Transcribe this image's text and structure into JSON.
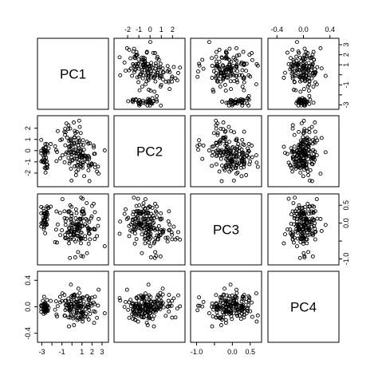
{
  "chart_data": {
    "type": "scatter",
    "layout": "scatterplot-matrix",
    "variables": [
      "PC1",
      "PC2",
      "PC3",
      "PC4"
    ],
    "axes": {
      "PC1": {
        "ticks": [
          -3,
          -2,
          -1,
          0,
          1,
          2,
          3
        ],
        "tick_labels": [
          "-3",
          "",
          "-1",
          "",
          "1",
          "2",
          "3"
        ],
        "range": [
          -3.2,
          3.4
        ]
      },
      "PC2": {
        "ticks": [
          -2,
          -1,
          0,
          1,
          2
        ],
        "tick_labels": [
          "-2",
          "-1",
          "0",
          "1",
          "2"
        ],
        "range": [
          -3.0,
          2.9
        ]
      },
      "PC3": {
        "ticks": [
          -1.0,
          -0.5,
          0.0,
          0.5
        ],
        "tick_labels": [
          "-1.0",
          "",
          "0.0",
          "0.5"
        ],
        "range": [
          -1.1,
          0.75
        ]
      },
      "PC4": {
        "ticks": [
          -0.4,
          0.0,
          0.4
        ],
        "tick_labels": [
          "-0.4",
          "0.0",
          "0.4"
        ],
        "range": [
          -0.5,
          0.5
        ]
      }
    },
    "axis_label_sides": {
      "top": [
        1,
        3
      ],
      "right": [
        0,
        2
      ],
      "bottom": [
        0,
        2
      ],
      "left": [
        1,
        3
      ]
    },
    "clusters": [
      {
        "n": 40,
        "PC1": [
          -2.7,
          0.2
        ],
        "PC2": [
          -0.5,
          0.75
        ],
        "PC3": [
          0.1,
          0.18
        ],
        "PC4": [
          0.0,
          0.06
        ]
      },
      {
        "n": 100,
        "PC1": [
          1.0,
          0.9
        ],
        "PC2": [
          -0.6,
          0.8
        ],
        "PC3": [
          -0.05,
          0.35
        ],
        "PC4": [
          0.0,
          0.13
        ]
      },
      {
        "n": 40,
        "PC1": [
          -0.2,
          0.8
        ],
        "PC2": [
          0.9,
          0.9
        ],
        "PC3": [
          -0.25,
          0.28
        ],
        "PC4": [
          0.05,
          0.12
        ]
      }
    ],
    "grid": false,
    "legend": "none"
  }
}
